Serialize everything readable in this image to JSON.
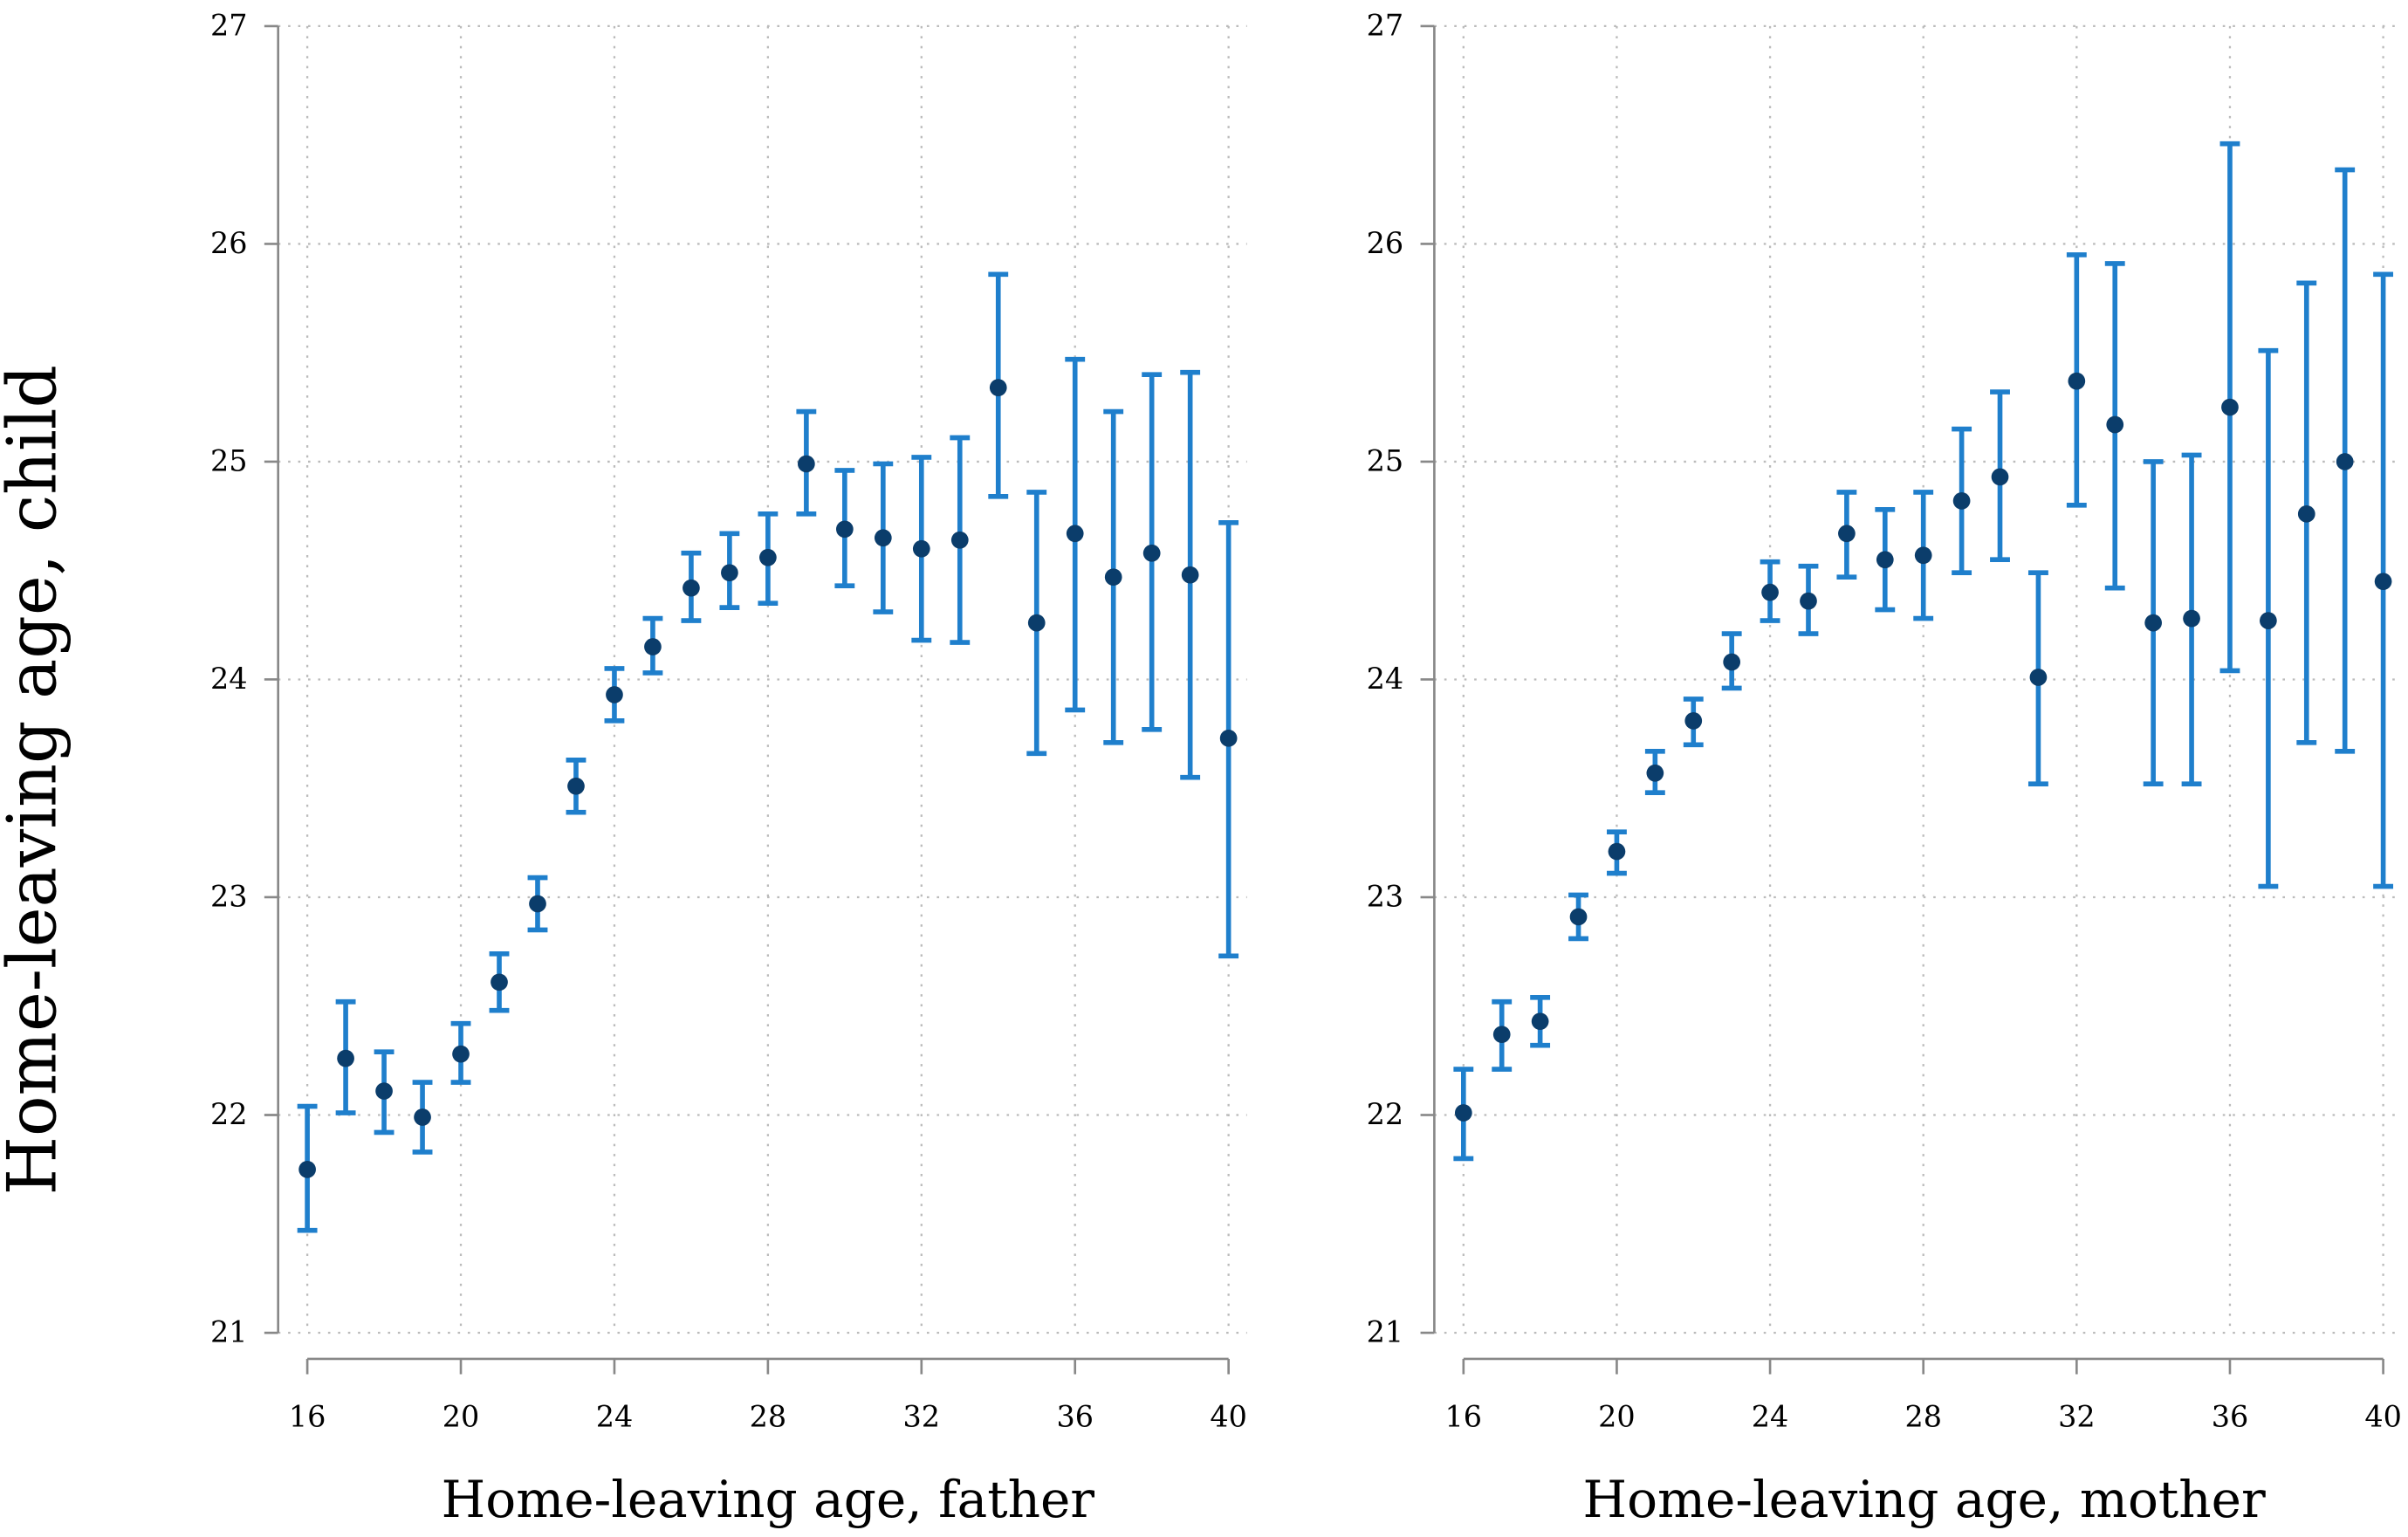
{
  "chart_data": [
    {
      "type": "scatter",
      "error_bars": true,
      "xlabel": "Home-leaving age, father",
      "ylabel": "Home-leaving age, child",
      "xlim": [
        16,
        40
      ],
      "ylim": [
        21,
        27
      ],
      "xticks": [
        16,
        20,
        24,
        28,
        32,
        36,
        40
      ],
      "yticks": [
        21,
        22,
        23,
        24,
        25,
        26,
        27
      ],
      "grid": true,
      "colors": {
        "point": "#0b3d6b",
        "error_bar": "#1f7fcc"
      },
      "x": [
        16,
        17,
        18,
        19,
        20,
        21,
        22,
        23,
        24,
        25,
        26,
        27,
        28,
        29,
        30,
        31,
        32,
        33,
        34,
        35,
        36,
        37,
        38,
        39,
        40
      ],
      "y": [
        21.75,
        22.26,
        22.11,
        21.99,
        22.28,
        22.61,
        22.97,
        23.51,
        23.93,
        24.15,
        24.42,
        24.49,
        24.56,
        24.99,
        24.69,
        24.65,
        24.6,
        24.64,
        25.34,
        24.26,
        24.67,
        24.47,
        24.58,
        24.48,
        23.73
      ],
      "low": [
        21.47,
        22.01,
        21.92,
        21.83,
        22.15,
        22.48,
        22.85,
        23.39,
        23.81,
        24.03,
        24.27,
        24.33,
        24.35,
        24.76,
        24.43,
        24.31,
        24.18,
        24.17,
        24.84,
        23.66,
        23.86,
        23.71,
        23.77,
        23.55,
        22.73
      ],
      "high": [
        22.04,
        22.52,
        22.29,
        22.15,
        22.42,
        22.74,
        23.09,
        23.63,
        24.05,
        24.28,
        24.58,
        24.67,
        24.76,
        25.23,
        24.96,
        24.99,
        25.02,
        25.11,
        25.86,
        24.86,
        25.47,
        25.23,
        25.4,
        25.41,
        24.72
      ]
    },
    {
      "type": "scatter",
      "error_bars": true,
      "xlabel": "Home-leaving age, mother",
      "ylabel": "",
      "xlim": [
        16,
        40
      ],
      "ylim": [
        21,
        27
      ],
      "xticks": [
        16,
        20,
        24,
        28,
        32,
        36,
        40
      ],
      "yticks": [
        21,
        22,
        23,
        24,
        25,
        26,
        27
      ],
      "grid": true,
      "colors": {
        "point": "#0b3d6b",
        "error_bar": "#1f7fcc"
      },
      "x": [
        16,
        17,
        18,
        19,
        20,
        21,
        22,
        23,
        24,
        25,
        26,
        27,
        28,
        29,
        30,
        31,
        32,
        33,
        34,
        35,
        36,
        37,
        38,
        39,
        40
      ],
      "y": [
        22.01,
        22.37,
        22.43,
        22.91,
        23.21,
        23.57,
        23.81,
        24.08,
        24.4,
        24.36,
        24.67,
        24.55,
        24.57,
        24.82,
        24.93,
        24.01,
        25.37,
        25.17,
        24.26,
        24.28,
        25.25,
        24.27,
        24.76,
        25.0,
        24.45
      ],
      "low": [
        21.8,
        22.21,
        22.32,
        22.81,
        23.11,
        23.48,
        23.7,
        23.96,
        24.27,
        24.21,
        24.47,
        24.32,
        24.28,
        24.49,
        24.55,
        23.52,
        24.8,
        24.42,
        23.52,
        23.52,
        24.04,
        23.05,
        23.71,
        23.67,
        23.05
      ],
      "high": [
        22.21,
        22.52,
        22.54,
        23.01,
        23.3,
        23.67,
        23.91,
        24.21,
        24.54,
        24.52,
        24.86,
        24.78,
        24.86,
        25.15,
        25.32,
        24.49,
        25.95,
        25.91,
        25.0,
        25.03,
        26.46,
        25.51,
        25.82,
        26.34,
        25.86
      ]
    }
  ]
}
